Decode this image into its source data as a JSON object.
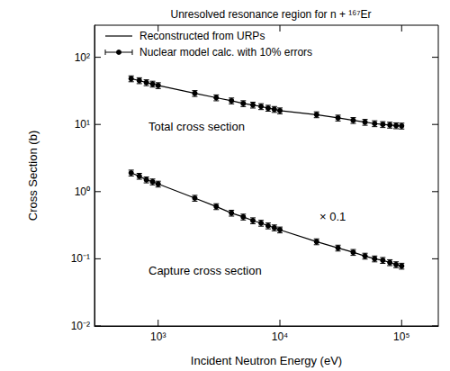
{
  "chart_data": {
    "type": "line",
    "title": "Unresolved resonance region for n + ¹⁶⁷Er",
    "xlabel": "Incident Neutron Energy (eV)",
    "ylabel": "Cross Section (b)",
    "log": true,
    "grid": false,
    "legend": "upper left",
    "xlim": [
      300,
      200000
    ],
    "ylim": [
      0.01,
      300
    ],
    "xticks": [
      {
        "value": 1000,
        "label": "10³"
      },
      {
        "value": 10000,
        "label": "10⁴"
      },
      {
        "value": 100000,
        "label": "10⁵"
      }
    ],
    "yticks": [
      {
        "value": 0.01,
        "label": "10⁻²"
      },
      {
        "value": 0.1,
        "label": "10⁻¹"
      },
      {
        "value": 1,
        "label": "10⁰"
      },
      {
        "value": 10,
        "label": "10¹"
      },
      {
        "value": 100,
        "label": "10²"
      }
    ],
    "annotations": [
      "Total cross section",
      "× 0.1",
      "Capture cross section"
    ],
    "x": [
      600,
      700,
      800,
      900,
      1000,
      2000,
      3000,
      4000,
      5000,
      6000,
      7000,
      8000,
      9000,
      10000,
      20000,
      30000,
      40000,
      50000,
      60000,
      70000,
      80000,
      90000,
      100000
    ],
    "series": [
      {
        "name": "Reconstructed from URPs",
        "type": "line",
        "color": "#000000",
        "line_style": "solid",
        "values": [
          48,
          45,
          42,
          40,
          38,
          29,
          25,
          22.5,
          20.5,
          19.5,
          18.5,
          17.5,
          16.8,
          16,
          14,
          12.5,
          11.5,
          10.8,
          10.3,
          10,
          9.8,
          9.6,
          9.5
        ]
      },
      {
        "name": "Reconstructed from URPs",
        "type": "line",
        "color": "#000000",
        "line_style": "solid",
        "values": [
          1.9,
          1.7,
          1.5,
          1.4,
          1.3,
          0.8,
          0.6,
          0.48,
          0.42,
          0.37,
          0.34,
          0.31,
          0.29,
          0.27,
          0.18,
          0.145,
          0.125,
          0.11,
          0.1,
          0.095,
          0.088,
          0.082,
          0.078
        ]
      },
      {
        "name": "Nuclear model calc. with 10% errors",
        "type": "scatter",
        "color": "#000000",
        "marker": "circle",
        "values": [
          48,
          45,
          42,
          40,
          38,
          29,
          25,
          22.5,
          20.5,
          19.5,
          18.5,
          17.5,
          16.8,
          16,
          14,
          12.5,
          11.5,
          10.8,
          10.3,
          10,
          9.8,
          9.6,
          9.5
        ],
        "errors": [
          4.8,
          4.5,
          4.2,
          4.0,
          3.8,
          2.9,
          2.5,
          2.25,
          2.05,
          1.95,
          1.85,
          1.75,
          1.68,
          1.6,
          1.4,
          1.25,
          1.15,
          1.08,
          1.03,
          1.0,
          0.98,
          0.96,
          0.95
        ]
      },
      {
        "name": "Nuclear model calc. with 10% errors",
        "type": "scatter",
        "color": "#000000",
        "marker": "circle",
        "values": [
          1.9,
          1.7,
          1.5,
          1.4,
          1.3,
          0.8,
          0.6,
          0.48,
          0.42,
          0.37,
          0.34,
          0.31,
          0.29,
          0.27,
          0.18,
          0.145,
          0.125,
          0.11,
          0.1,
          0.095,
          0.088,
          0.082,
          0.078
        ],
        "errors": [
          0.19,
          0.17,
          0.15,
          0.14,
          0.13,
          0.08,
          0.06,
          0.048,
          0.042,
          0.037,
          0.034,
          0.031,
          0.029,
          0.027,
          0.018,
          0.0145,
          0.0125,
          0.011,
          0.01,
          0.0095,
          0.0088,
          0.0082,
          0.0078
        ]
      }
    ]
  }
}
